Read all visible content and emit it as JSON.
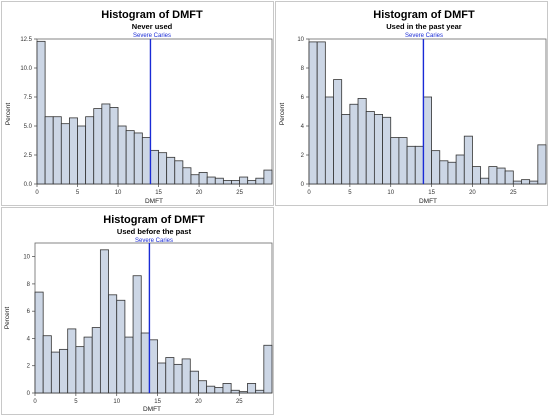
{
  "chart_data": [
    {
      "type": "bar",
      "title": "Histogram of DMFT",
      "subtitle": "Never used",
      "reference_label": "Severe Caries",
      "reference_x": 14,
      "xlabel": "DMFT",
      "ylabel": "Percent",
      "xlim": [
        0,
        28
      ],
      "ylim": [
        0,
        12.5
      ],
      "xticks": [
        0,
        5,
        10,
        15,
        20,
        25
      ],
      "yticks": [
        0,
        2.5,
        5.0,
        7.5,
        10.0,
        12.5
      ],
      "ytick_labels": [
        "0.0",
        "2.5",
        "5.0",
        "7.5",
        "10.0",
        "12.5"
      ],
      "bin_width": 1,
      "values": [
        12.3,
        5.8,
        5.8,
        5.2,
        5.7,
        5.0,
        5.8,
        6.5,
        6.9,
        6.6,
        5.0,
        4.6,
        4.4,
        4.0,
        2.9,
        2.7,
        2.3,
        2.0,
        1.4,
        0.8,
        1.0,
        0.6,
        0.5,
        0.3,
        0.3,
        0.6,
        0.3,
        0.5,
        1.2
      ],
      "grid": false,
      "bar_color": "#ccd6e5",
      "reference_color": "#1a2bd6"
    },
    {
      "type": "bar",
      "title": "Histogram of DMFT",
      "subtitle": "Used in the past year",
      "reference_label": "Severe Caries",
      "reference_x": 14,
      "xlabel": "DMFT",
      "ylabel": "Percent",
      "xlim": [
        0,
        28
      ],
      "ylim": [
        0,
        10
      ],
      "xticks": [
        0,
        5,
        10,
        15,
        20,
        25
      ],
      "yticks": [
        0,
        2,
        4,
        6,
        8,
        10
      ],
      "ytick_labels": [
        "0",
        "2",
        "4",
        "6",
        "8",
        "10"
      ],
      "bin_width": 1,
      "values": [
        9.8,
        9.8,
        6.0,
        7.2,
        4.8,
        5.5,
        5.9,
        5.0,
        4.8,
        4.6,
        3.2,
        3.2,
        2.6,
        2.6,
        6.0,
        2.3,
        1.6,
        1.5,
        2.0,
        3.3,
        1.2,
        0.4,
        1.2,
        1.1,
        0.9,
        0.2,
        0.3,
        0.2,
        2.7
      ],
      "grid": false,
      "bar_color": "#ccd6e5",
      "reference_color": "#1a2bd6"
    },
    {
      "type": "bar",
      "title": "Histogram of DMFT",
      "subtitle": "Used before the past",
      "reference_label": "Severe Caries",
      "reference_x": 14,
      "xlabel": "DMFT",
      "ylabel": "Percent",
      "xlim": [
        0,
        28
      ],
      "ylim": [
        0,
        11
      ],
      "xticks": [
        0,
        5,
        10,
        15,
        20,
        25
      ],
      "yticks": [
        0,
        2,
        4,
        6,
        8,
        10
      ],
      "ytick_labels": [
        "0",
        "2",
        "4",
        "6",
        "8",
        "10"
      ],
      "bin_width": 1,
      "values": [
        7.4,
        4.2,
        3.0,
        3.2,
        4.7,
        3.4,
        4.1,
        4.8,
        10.5,
        7.2,
        6.8,
        4.1,
        8.6,
        4.4,
        3.9,
        2.2,
        2.6,
        2.1,
        2.5,
        1.6,
        0.9,
        0.5,
        0.4,
        0.7,
        0.2,
        0.1,
        0.7,
        0.2,
        3.5
      ],
      "grid": false,
      "bar_color": "#ccd6e5",
      "reference_color": "#1a2bd6"
    }
  ]
}
